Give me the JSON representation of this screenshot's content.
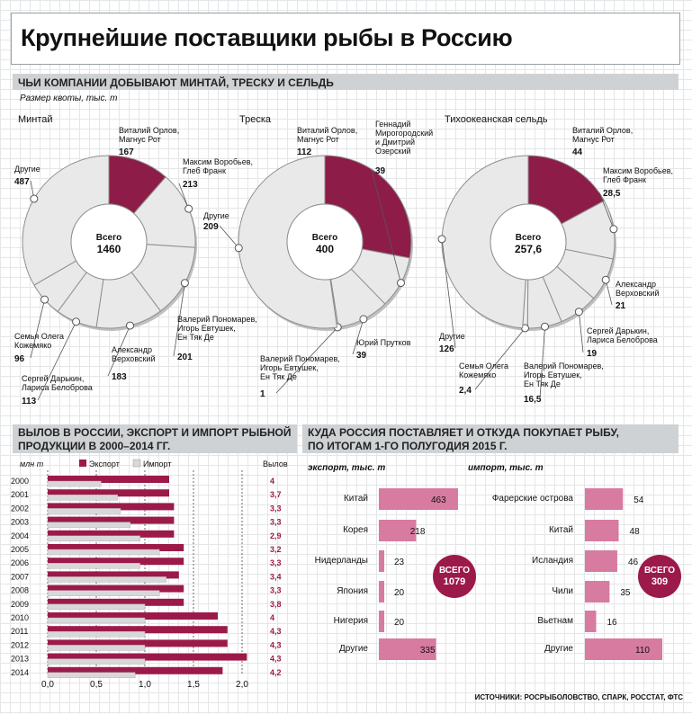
{
  "title": "Крупнейшие поставщики рыбы в Россию",
  "quota_section": {
    "heading": "ЧЬИ КОМПАНИИ ДОБЫВАЮТ МИНТАЙ, ТРЕСКУ И СЕЛЬДЬ",
    "unit": "Размер квоты, тыс. т"
  },
  "harvest_section": {
    "heading_line1": "ВЫЛОВ В РОССИИ, ЭКСПОРТ И ИМПОРТ РЫБНОЙ",
    "heading_line2": "ПРОДУКЦИИ В 2000–2014 ГГ.",
    "unit": "млн т",
    "legend_export": "Экспорт",
    "legend_import": "Импорт",
    "catch_label": "Вылов"
  },
  "trade_section": {
    "heading_line1": "КУДА РОССИЯ ПОСТАВЛЯЕТ И ОТКУДА ПОКУПАЕТ РЫБУ,",
    "heading_line2": "ПО ИТОГАМ 1-ГО ПОЛУГОДИЯ 2015 Г.",
    "export_label": "экспорт, тыс. т",
    "import_label": "импорт, тыс. т",
    "export_total_label": "ВСЕГО",
    "export_total_value": "1079",
    "import_total_label": "ВСЕГО",
    "import_total_value": "309"
  },
  "source": "ИСТОЧНИКИ: РОСРЫБОЛОВСТВО, СПАРК, РОССТАТ, ФТС",
  "colors": {
    "accent": "#9c1a4a",
    "highlight": "#8e1c48",
    "pink_bar": "#d77ba1",
    "ring": "#e9e9e9",
    "ring_edge": "#8f8f8f",
    "band": "#cfd2d4",
    "import_bar": "#d8d8d8",
    "catch_text": "#9c1a4a"
  },
  "chart_data": [
    {
      "type": "pie",
      "title": "Минтай",
      "total_label": "Всего",
      "total_value": "1460",
      "slices": [
        {
          "label": "Виталий Орлов,\nМагнус Рот",
          "value": 167,
          "value_text": "167",
          "highlight": true
        },
        {
          "label": "Максим Воробьев,\nГлеб Франк",
          "value": 213,
          "value_text": "213"
        },
        {
          "label": "Валерий Пономарев,\nИгорь Евтушек,\nЕн Тяк Де",
          "value": 201,
          "value_text": "201"
        },
        {
          "label": "Александр\nВерховский",
          "value": 183,
          "value_text": "183"
        },
        {
          "label": "Сергей Дарькин,\nЛариса Белоброва",
          "value": 113,
          "value_text": "113"
        },
        {
          "label": "Семья Олега\nКожемяко",
          "value": 96,
          "value_text": "96"
        },
        {
          "label": "Другие",
          "value": 487,
          "value_text": "487"
        }
      ]
    },
    {
      "type": "pie",
      "title": "Треска",
      "total_label": "Всего",
      "total_value": "400",
      "slices": [
        {
          "label": "Виталий Орлов,\nМагнус Рот",
          "value": 112,
          "value_text": "112",
          "highlight": true
        },
        {
          "label": "Геннадий\nМирогородский\nи Дмитрий\nОзерский",
          "value": 39,
          "value_text": "39"
        },
        {
          "label": "Юрий Прутков",
          "value": 39,
          "value_text": "39"
        },
        {
          "label": "Валерий Пономарев,\nИгорь Евтушек,\nЕн Тяк Де",
          "value": 1,
          "value_text": "1"
        },
        {
          "label": "Другие",
          "value": 209,
          "value_text": "209"
        }
      ]
    },
    {
      "type": "pie",
      "title": "Тихоокеанская сельдь",
      "total_label": "Всего",
      "total_value": "257,6",
      "slices": [
        {
          "label": "Виталий Орлов,\nМагнус Рот",
          "value": 44,
          "value_text": "44",
          "highlight": true
        },
        {
          "label": "Максим Воробьев,\nГлеб Франк",
          "value": 28.5,
          "value_text": "28,5"
        },
        {
          "label": "Александр\nВерховский",
          "value": 21,
          "value_text": "21"
        },
        {
          "label": "Сергей Дарькин,\nЛариса Белоброва",
          "value": 19,
          "value_text": "19"
        },
        {
          "label": "Валерий Пономарев,\nИгорь Евтушек,\nЕн Тяк Де",
          "value": 16.5,
          "value_text": "16,5"
        },
        {
          "label": "Семья Олега\nКожемяко",
          "value": 2.4,
          "value_text": "2,4"
        },
        {
          "label": "Другие",
          "value": 126,
          "value_text": "126"
        }
      ]
    },
    {
      "type": "bar",
      "orientation": "horizontal",
      "categories": [
        "2000",
        "2001",
        "2002",
        "2003",
        "2004",
        "2005",
        "2006",
        "2007",
        "2008",
        "2009",
        "2010",
        "2011",
        "2012",
        "2013",
        "2014"
      ],
      "series": [
        {
          "name": "Экспорт",
          "values": [
            1.25,
            1.25,
            1.3,
            1.3,
            1.3,
            1.4,
            1.4,
            1.35,
            1.4,
            1.4,
            1.75,
            1.85,
            1.85,
            2.05,
            1.8
          ]
        },
        {
          "name": "Импорт",
          "values": [
            0.55,
            0.72,
            0.75,
            0.85,
            0.95,
            1.15,
            0.95,
            1.22,
            1.15,
            1.0,
            1.0,
            1.0,
            1.0,
            1.0,
            0.9
          ]
        }
      ],
      "catch_values": [
        "4",
        "3,7",
        "3,3",
        "3,3",
        "2,9",
        "3,2",
        "3,3",
        "3,4",
        "3,3",
        "3,8",
        "4",
        "4,3",
        "4,3",
        "4,3",
        "4,2"
      ],
      "x_ticks": [
        "0,0",
        "0,5",
        "1,0",
        "1,5",
        "2,0"
      ],
      "xlim": [
        0,
        2.0
      ]
    },
    {
      "type": "bar",
      "orientation": "horizontal",
      "title": "экспорт, тыс. т",
      "categories": [
        "Китай",
        "Корея",
        "Нидерланды",
        "Япония",
        "Нигерия",
        "Другие"
      ],
      "values": [
        463,
        218,
        23,
        20,
        20,
        335
      ]
    },
    {
      "type": "bar",
      "orientation": "horizontal",
      "title": "импорт, тыс. т",
      "categories": [
        "Фарерские острова",
        "Китай",
        "Исландия",
        "Чили",
        "Вьетнам",
        "Другие"
      ],
      "values": [
        54,
        48,
        46,
        35,
        16,
        110
      ]
    }
  ]
}
